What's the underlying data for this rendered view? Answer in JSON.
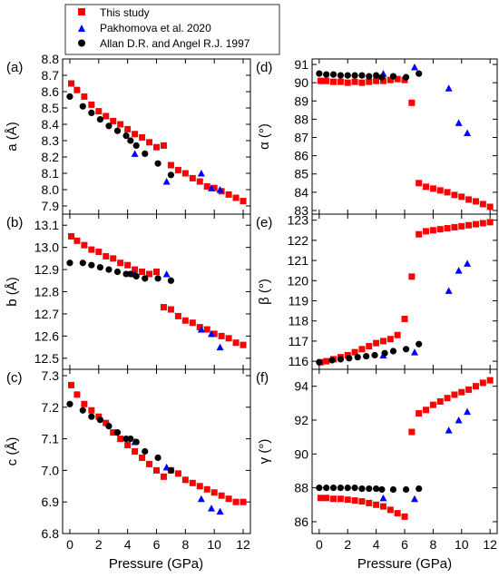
{
  "figure": {
    "xlabel": "Pressure (GPa)"
  },
  "legend": {
    "entries": [
      {
        "label": "This study",
        "marker": "square",
        "color": "#ff0000"
      },
      {
        "label": "Pakhomova et al. 2020",
        "marker": "triangle",
        "color": "#0000ff"
      },
      {
        "label": "Allan D.R. and Angel R.J. 1997",
        "marker": "circle",
        "color": "#000000"
      }
    ]
  },
  "chart_data": [
    {
      "type": "scatter",
      "panel_label": "(a)",
      "ylabel": "a (Å)",
      "xlim": [
        -0.5,
        12.5
      ],
      "ylim": [
        7.85,
        8.8
      ],
      "xticks": [
        0,
        2,
        4,
        6,
        8,
        10,
        12
      ],
      "yticks": [
        7.9,
        8.0,
        8.1,
        8.2,
        8.3,
        8.4,
        8.5,
        8.6,
        8.7,
        8.8
      ],
      "ytick_labels": [
        "7.9",
        "8.0",
        "8.1",
        "8.2",
        "8.3",
        "8.4",
        "8.5",
        "8.6",
        "8.7",
        "8.8"
      ],
      "series": [
        {
          "name": "This study",
          "x": [
            0.1,
            0.5,
            1.0,
            1.5,
            2.0,
            2.5,
            3.0,
            3.5,
            4.0,
            4.5,
            5.0,
            5.5,
            6.0,
            6.5,
            7.0,
            7.5,
            8.0,
            8.5,
            9.0,
            9.5,
            10.0,
            10.5,
            11.0,
            11.5,
            12.0
          ],
          "y": [
            8.65,
            8.61,
            8.57,
            8.52,
            8.48,
            8.45,
            8.42,
            8.4,
            8.37,
            8.34,
            8.32,
            8.29,
            8.26,
            8.27,
            8.15,
            8.12,
            8.1,
            8.07,
            8.05,
            8.02,
            8.01,
            7.99,
            7.97,
            7.95,
            7.93
          ]
        },
        {
          "name": "Pakhomova et al. 2020",
          "x": [
            4.5,
            6.7,
            9.1,
            9.8,
            10.4
          ],
          "y": [
            8.22,
            8.05,
            8.1,
            8.01,
            8.0
          ]
        },
        {
          "name": "Allan D.R. and Angel R.J. 1997",
          "x": [
            0.0,
            0.9,
            1.5,
            2.1,
            2.7,
            3.3,
            3.9,
            4.2,
            4.6,
            5.2,
            6.1,
            7.0
          ],
          "y": [
            8.57,
            8.51,
            8.47,
            8.43,
            8.39,
            8.36,
            8.33,
            8.3,
            8.27,
            8.22,
            8.16,
            8.09
          ]
        }
      ]
    },
    {
      "type": "scatter",
      "panel_label": "(b)",
      "ylabel": "b (Å)",
      "xlim": [
        -0.5,
        12.5
      ],
      "ylim": [
        12.45,
        13.15
      ],
      "xticks": [
        0,
        2,
        4,
        6,
        8,
        10,
        12
      ],
      "yticks": [
        12.5,
        12.6,
        12.7,
        12.8,
        12.9,
        13.0,
        13.1
      ],
      "ytick_labels": [
        "12.5",
        "12.6",
        "12.7",
        "12.8",
        "12.9",
        "13.0",
        "13.1"
      ],
      "series": [
        {
          "name": "This study",
          "x": [
            0.1,
            0.5,
            1.0,
            1.5,
            2.0,
            2.5,
            3.0,
            3.5,
            4.0,
            4.5,
            5.0,
            5.5,
            6.0,
            6.5,
            7.0,
            7.5,
            8.0,
            8.5,
            9.0,
            9.5,
            10.0,
            10.5,
            11.0,
            11.5,
            12.0
          ],
          "y": [
            13.05,
            13.03,
            13.01,
            12.99,
            12.98,
            12.96,
            12.95,
            12.93,
            12.92,
            12.9,
            12.89,
            12.88,
            12.89,
            12.73,
            12.72,
            12.69,
            12.67,
            12.66,
            12.64,
            12.63,
            12.61,
            12.6,
            12.59,
            12.57,
            12.56
          ]
        },
        {
          "name": "Pakhomova et al. 2020",
          "x": [
            4.5,
            6.7,
            9.1,
            9.8,
            10.4
          ],
          "y": [
            12.88,
            12.88,
            12.63,
            12.61,
            12.55
          ]
        },
        {
          "name": "Allan D.R. and Angel R.J. 1997",
          "x": [
            0.0,
            0.9,
            1.5,
            2.1,
            2.7,
            3.3,
            3.9,
            4.2,
            4.6,
            5.2,
            6.1,
            7.0
          ],
          "y": [
            12.93,
            12.93,
            12.92,
            12.91,
            12.9,
            12.89,
            12.88,
            12.88,
            12.87,
            12.86,
            12.86,
            12.85
          ]
        }
      ]
    },
    {
      "type": "scatter",
      "panel_label": "(c)",
      "ylabel": "c (Å)",
      "xlim": [
        -0.5,
        12.5
      ],
      "ylim": [
        6.8,
        7.32
      ],
      "xticks": [
        0,
        2,
        4,
        6,
        8,
        10,
        12
      ],
      "yticks": [
        6.8,
        6.9,
        7.0,
        7.1,
        7.2,
        7.3
      ],
      "ytick_labels": [
        "6.8",
        "6.9",
        "7.0",
        "7.1",
        "7.2",
        "7.3"
      ],
      "series": [
        {
          "name": "This study",
          "x": [
            0.1,
            0.5,
            1.0,
            1.5,
            2.0,
            2.5,
            3.0,
            3.5,
            4.0,
            4.5,
            5.0,
            5.5,
            6.0,
            6.5,
            7.0,
            7.5,
            8.0,
            8.5,
            9.0,
            9.5,
            10.0,
            10.5,
            11.0,
            11.5,
            12.0
          ],
          "y": [
            7.27,
            7.24,
            7.21,
            7.19,
            7.17,
            7.15,
            7.12,
            7.1,
            7.08,
            7.06,
            7.04,
            7.02,
            7.0,
            6.98,
            7.0,
            6.99,
            6.97,
            6.96,
            6.95,
            6.94,
            6.93,
            6.92,
            6.91,
            6.9,
            6.9
          ]
        },
        {
          "name": "Pakhomova et al. 2020",
          "x": [
            4.5,
            6.7,
            9.1,
            9.8,
            10.4
          ],
          "y": [
            7.09,
            7.01,
            6.91,
            6.88,
            6.87
          ]
        },
        {
          "name": "Allan D.R. and Angel R.J. 1997",
          "x": [
            0.0,
            0.9,
            1.5,
            2.1,
            2.7,
            3.3,
            3.9,
            4.2,
            4.6,
            5.2,
            6.1,
            7.0
          ],
          "y": [
            7.21,
            7.19,
            7.17,
            7.16,
            7.14,
            7.12,
            7.1,
            7.1,
            7.09,
            7.06,
            7.04,
            7.0
          ]
        }
      ]
    },
    {
      "type": "scatter",
      "panel_label": "(d)",
      "ylabel": "α (°)",
      "xlim": [
        -0.5,
        12.5
      ],
      "ylim": [
        82.8,
        91.3
      ],
      "xticks": [
        0,
        2,
        4,
        6,
        8,
        10,
        12
      ],
      "yticks": [
        83,
        84,
        85,
        86,
        87,
        88,
        89,
        90,
        91
      ],
      "ytick_labels": [
        "83",
        "84",
        "85",
        "86",
        "87",
        "88",
        "89",
        "90",
        "91"
      ],
      "series": [
        {
          "name": "This study",
          "x": [
            0.1,
            0.5,
            1.0,
            1.5,
            2.0,
            2.5,
            3.0,
            3.5,
            4.0,
            4.5,
            5.0,
            5.5,
            6.0,
            6.5,
            7.0,
            7.5,
            8.0,
            8.5,
            9.0,
            9.5,
            10.0,
            10.5,
            11.0,
            11.5,
            12.0
          ],
          "y": [
            90.1,
            90.1,
            90.05,
            90.05,
            90.0,
            90.05,
            90.0,
            90.05,
            90.1,
            90.1,
            90.15,
            90.2,
            90.15,
            88.9,
            84.5,
            84.3,
            84.2,
            84.1,
            84.0,
            83.85,
            83.75,
            83.6,
            83.5,
            83.35,
            83.2
          ]
        },
        {
          "name": "Pakhomova et al. 2020",
          "x": [
            4.5,
            6.7,
            9.1,
            9.8,
            10.4
          ],
          "y": [
            90.5,
            90.85,
            89.7,
            87.8,
            87.25
          ]
        },
        {
          "name": "Allan D.R. and Angel R.J. 1997",
          "x": [
            0.0,
            0.5,
            1.0,
            1.5,
            2.0,
            2.5,
            3.0,
            3.5,
            4.0,
            4.4,
            5.2,
            6.1,
            7.0
          ],
          "y": [
            90.5,
            90.45,
            90.45,
            90.4,
            90.4,
            90.4,
            90.4,
            90.35,
            90.4,
            90.3,
            90.35,
            90.3,
            90.5
          ]
        }
      ]
    },
    {
      "type": "scatter",
      "panel_label": "(e)",
      "ylabel": "β (°)",
      "xlim": [
        -0.5,
        12.5
      ],
      "ylim": [
        115.6,
        123.3
      ],
      "xticks": [
        0,
        2,
        4,
        6,
        8,
        10,
        12
      ],
      "yticks": [
        116,
        117,
        118,
        119,
        120,
        121,
        122,
        123
      ],
      "ytick_labels": [
        "116",
        "117",
        "118",
        "119",
        "120",
        "121",
        "122",
        "123"
      ],
      "series": [
        {
          "name": "This study",
          "x": [
            0.1,
            0.5,
            1.0,
            1.5,
            2.0,
            2.5,
            3.0,
            3.5,
            4.0,
            4.5,
            5.0,
            5.5,
            6.0,
            6.5,
            7.0,
            7.5,
            8.0,
            8.5,
            9.0,
            9.5,
            10.0,
            10.5,
            11.0,
            11.5,
            12.0
          ],
          "y": [
            115.95,
            116.0,
            116.1,
            116.2,
            116.3,
            116.45,
            116.6,
            116.75,
            116.9,
            117.0,
            117.1,
            117.3,
            118.1,
            120.2,
            122.3,
            122.45,
            122.5,
            122.55,
            122.6,
            122.65,
            122.7,
            122.75,
            122.8,
            122.85,
            122.9
          ]
        },
        {
          "name": "Pakhomova et al. 2020",
          "x": [
            4.5,
            6.7,
            9.1,
            9.8,
            10.4
          ],
          "y": [
            116.3,
            116.45,
            119.5,
            120.5,
            120.85
          ]
        },
        {
          "name": "Allan D.R. and Angel R.J. 1997",
          "x": [
            0.0,
            0.9,
            1.5,
            2.1,
            2.7,
            3.3,
            3.9,
            4.6,
            5.2,
            6.1,
            7.0
          ],
          "y": [
            115.95,
            116.05,
            116.1,
            116.15,
            116.2,
            116.25,
            116.3,
            116.4,
            116.5,
            116.6,
            116.85
          ]
        }
      ]
    },
    {
      "type": "scatter",
      "panel_label": "(f)",
      "ylabel": "γ (°)",
      "xlim": [
        -0.5,
        12.5
      ],
      "ylim": [
        85.3,
        95.0
      ],
      "xticks": [
        0,
        2,
        4,
        6,
        8,
        10,
        12
      ],
      "yticks": [
        86,
        88,
        90,
        92,
        94
      ],
      "ytick_labels": [
        "86",
        "88",
        "90",
        "92",
        "94"
      ],
      "series": [
        {
          "name": "This study",
          "x": [
            0.1,
            0.5,
            1.0,
            1.5,
            2.0,
            2.5,
            3.0,
            3.5,
            4.0,
            4.5,
            5.0,
            5.5,
            6.0,
            6.5,
            7.0,
            7.5,
            8.0,
            8.5,
            9.0,
            9.5,
            10.0,
            10.5,
            11.0,
            11.5,
            12.0
          ],
          "y": [
            87.4,
            87.4,
            87.35,
            87.35,
            87.3,
            87.25,
            87.2,
            87.1,
            87.0,
            86.9,
            86.7,
            86.5,
            86.3,
            91.3,
            92.4,
            92.6,
            92.9,
            93.1,
            93.3,
            93.5,
            93.65,
            93.8,
            94.0,
            94.2,
            94.35
          ]
        },
        {
          "name": "Pakhomova et al. 2020",
          "x": [
            4.5,
            6.7,
            9.1,
            9.8,
            10.4
          ],
          "y": [
            87.4,
            87.35,
            91.4,
            92.0,
            92.5
          ]
        },
        {
          "name": "Allan D.R. and Angel R.J. 1997",
          "x": [
            0.0,
            0.5,
            1.0,
            1.5,
            2.0,
            2.5,
            3.0,
            3.5,
            4.0,
            4.4,
            5.2,
            6.1,
            7.0
          ],
          "y": [
            88.0,
            88.0,
            88.0,
            88.0,
            88.0,
            88.0,
            87.95,
            87.95,
            87.95,
            87.9,
            87.9,
            87.9,
            87.95
          ]
        }
      ]
    }
  ]
}
